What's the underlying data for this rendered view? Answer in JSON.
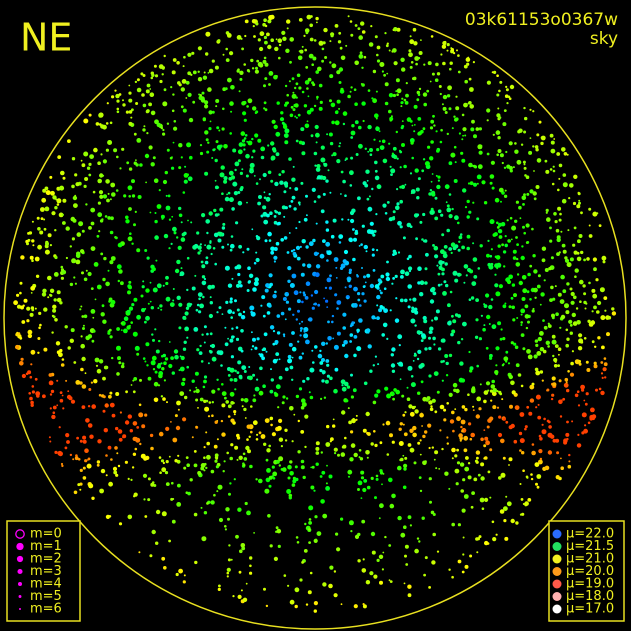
{
  "header": {
    "label": "NE",
    "frame_id": "03k61153o0367w",
    "channel": "sky"
  },
  "magnitude_legend": [
    "m=0",
    "m=1",
    "m=2",
    "m=3",
    "m=4",
    "m=5",
    "m=6"
  ],
  "brightness_legend": [
    {
      "label": "μ=22.0",
      "color": "#2a6bff"
    },
    {
      "label": "μ=21.5",
      "color": "#22e060"
    },
    {
      "label": "μ=21.0",
      "color": "#f2f020"
    },
    {
      "label": "μ=20.0",
      "color": "#ff9a1a"
    },
    {
      "label": "μ=19.0",
      "color": "#ff5a4a"
    },
    {
      "label": "μ=18.0",
      "color": "#ffb0b0"
    },
    {
      "label": "μ=17.0",
      "color": "#ffffff"
    }
  ]
}
